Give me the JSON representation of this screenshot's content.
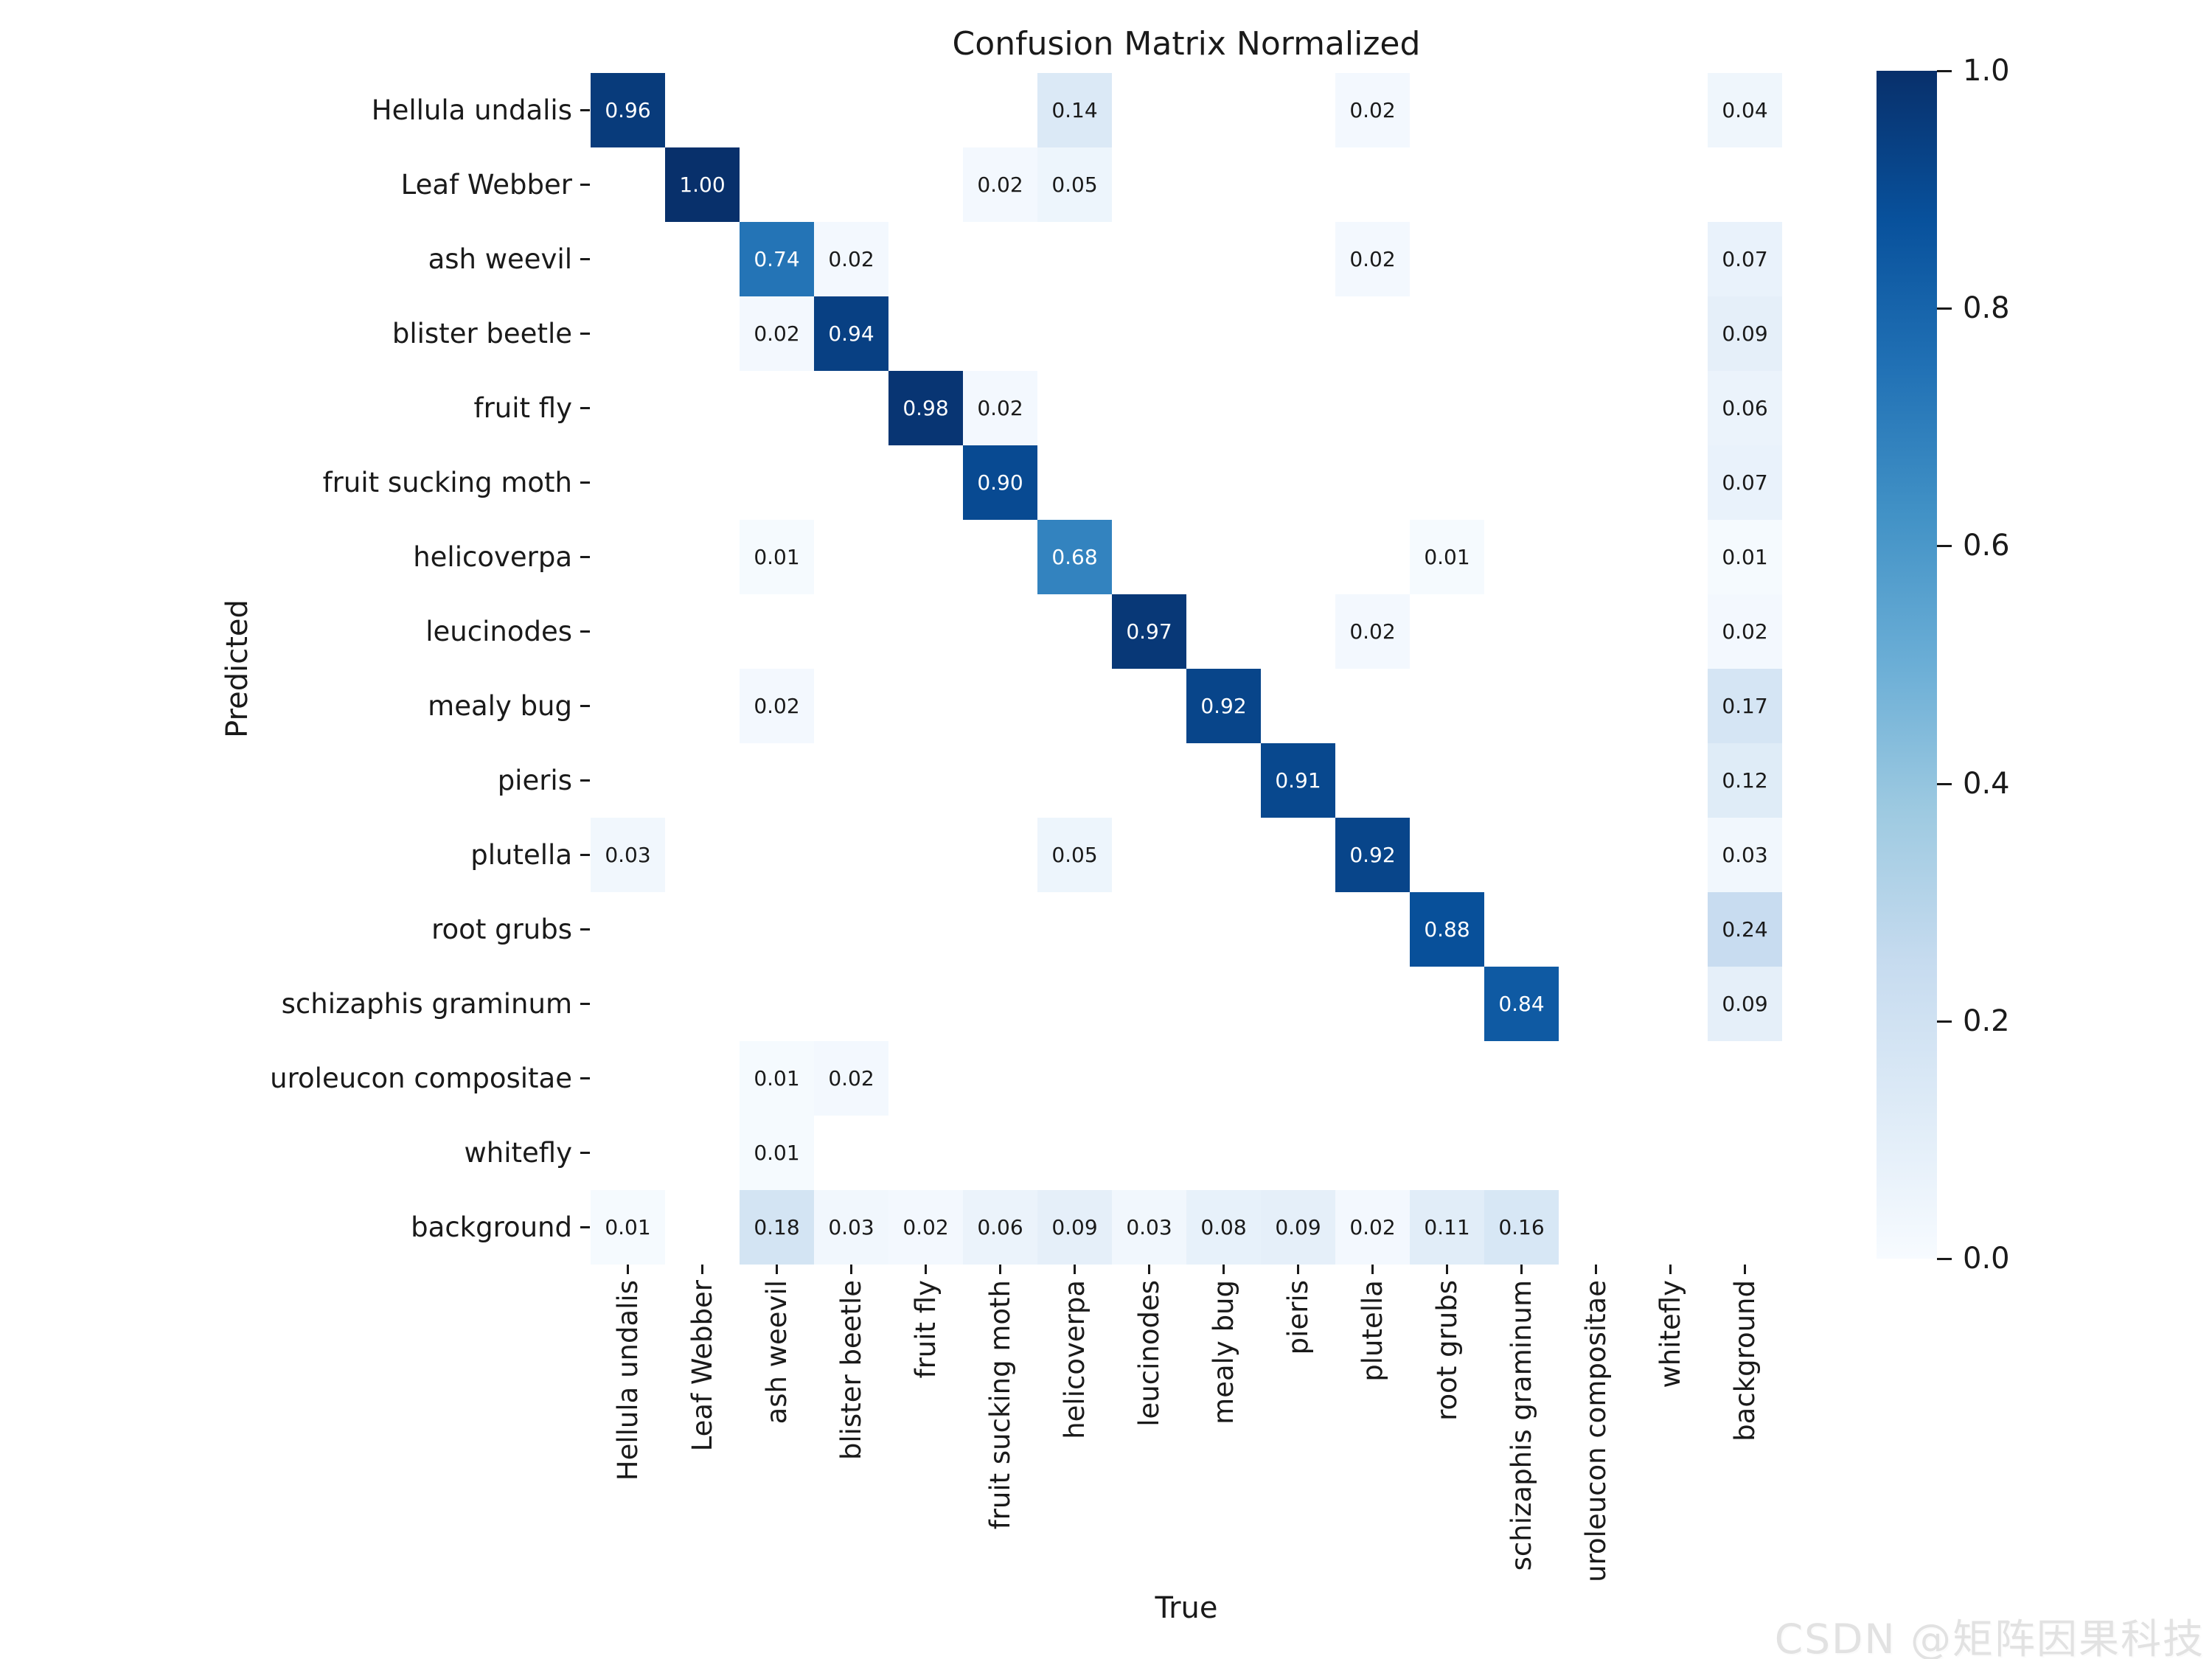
{
  "title": "Confusion Matrix Normalized",
  "axes": {
    "x_label": "True",
    "y_label": "Predicted"
  },
  "watermark": "CSDN @矩阵因果科技",
  "colorbar": {
    "tick_labels": [
      "1.0",
      "0.8",
      "0.6",
      "0.4",
      "0.2",
      "0.0"
    ],
    "min": 0.0,
    "max": 1.0
  },
  "chart_data": {
    "type": "heatmap",
    "title": "Confusion Matrix Normalized",
    "xlabel": "True",
    "ylabel": "Predicted",
    "colormap": "Blues",
    "vmin": 0.0,
    "vmax": 1.0,
    "legend_position": "right-colorbar",
    "grid": false,
    "categories": [
      "Hellula undalis",
      "Leaf Webber",
      "ash weevil",
      "blister beetle",
      "fruit fly",
      "fruit sucking moth",
      "helicoverpa",
      "leucinodes",
      "mealy bug",
      "pieris",
      "plutella",
      "root grubs",
      "schizaphis graminum",
      "uroleucon compositae",
      "whitefly",
      "background"
    ],
    "rows": [
      {
        "name": "Hellula undalis",
        "values": [
          0.96,
          null,
          null,
          null,
          null,
          null,
          0.14,
          null,
          null,
          null,
          0.02,
          null,
          null,
          null,
          null,
          0.04
        ]
      },
      {
        "name": "Leaf Webber",
        "values": [
          null,
          1.0,
          null,
          null,
          null,
          0.02,
          0.05,
          null,
          null,
          null,
          null,
          null,
          null,
          null,
          null,
          null
        ]
      },
      {
        "name": "ash weevil",
        "values": [
          null,
          null,
          0.74,
          0.02,
          null,
          null,
          null,
          null,
          null,
          null,
          0.02,
          null,
          null,
          null,
          null,
          0.07
        ]
      },
      {
        "name": "blister beetle",
        "values": [
          null,
          null,
          0.02,
          0.94,
          null,
          null,
          null,
          null,
          null,
          null,
          null,
          null,
          null,
          null,
          null,
          0.09
        ]
      },
      {
        "name": "fruit fly",
        "values": [
          null,
          null,
          null,
          null,
          0.98,
          0.02,
          null,
          null,
          null,
          null,
          null,
          null,
          null,
          null,
          null,
          0.06
        ]
      },
      {
        "name": "fruit sucking moth",
        "values": [
          null,
          null,
          null,
          null,
          null,
          0.9,
          null,
          null,
          null,
          null,
          null,
          null,
          null,
          null,
          null,
          0.07
        ]
      },
      {
        "name": "helicoverpa",
        "values": [
          null,
          null,
          0.01,
          null,
          null,
          null,
          0.68,
          null,
          null,
          null,
          null,
          0.01,
          null,
          null,
          null,
          0.01
        ]
      },
      {
        "name": "leucinodes",
        "values": [
          null,
          null,
          null,
          null,
          null,
          null,
          null,
          0.97,
          null,
          null,
          0.02,
          null,
          null,
          null,
          null,
          0.02
        ]
      },
      {
        "name": "mealy bug",
        "values": [
          null,
          null,
          0.02,
          null,
          null,
          null,
          null,
          null,
          0.92,
          null,
          null,
          null,
          null,
          null,
          null,
          0.17
        ]
      },
      {
        "name": "pieris",
        "values": [
          null,
          null,
          null,
          null,
          null,
          null,
          null,
          null,
          null,
          0.91,
          null,
          null,
          null,
          null,
          null,
          0.12
        ]
      },
      {
        "name": "plutella",
        "values": [
          0.03,
          null,
          null,
          null,
          null,
          null,
          0.05,
          null,
          null,
          null,
          0.92,
          null,
          null,
          null,
          null,
          0.03
        ]
      },
      {
        "name": "root grubs",
        "values": [
          null,
          null,
          null,
          null,
          null,
          null,
          null,
          null,
          null,
          null,
          null,
          0.88,
          null,
          null,
          null,
          0.24
        ]
      },
      {
        "name": "schizaphis graminum",
        "values": [
          null,
          null,
          null,
          null,
          null,
          null,
          null,
          null,
          null,
          null,
          null,
          null,
          0.84,
          null,
          null,
          0.09
        ]
      },
      {
        "name": "uroleucon compositae",
        "values": [
          null,
          null,
          0.01,
          0.02,
          null,
          null,
          null,
          null,
          null,
          null,
          null,
          null,
          null,
          null,
          null,
          null
        ]
      },
      {
        "name": "whitefly",
        "values": [
          null,
          null,
          0.01,
          null,
          null,
          null,
          null,
          null,
          null,
          null,
          null,
          null,
          null,
          null,
          null,
          null
        ]
      },
      {
        "name": "background",
        "values": [
          0.01,
          null,
          0.18,
          0.03,
          0.02,
          0.06,
          0.09,
          0.03,
          0.08,
          0.09,
          0.02,
          0.11,
          0.16,
          null,
          null,
          null
        ]
      }
    ],
    "colormap_anchors": [
      [
        247,
        251,
        255
      ],
      [
        222,
        235,
        247
      ],
      [
        198,
        219,
        239
      ],
      [
        158,
        202,
        225
      ],
      [
        107,
        174,
        214
      ],
      [
        66,
        146,
        198
      ],
      [
        33,
        113,
        181
      ],
      [
        8,
        81,
        156
      ],
      [
        8,
        48,
        107
      ]
    ],
    "annotation_format": "2-decimals",
    "annotation_light_text_color": "#ffffff",
    "annotation_dark_text_color": "#1a1a1a"
  }
}
